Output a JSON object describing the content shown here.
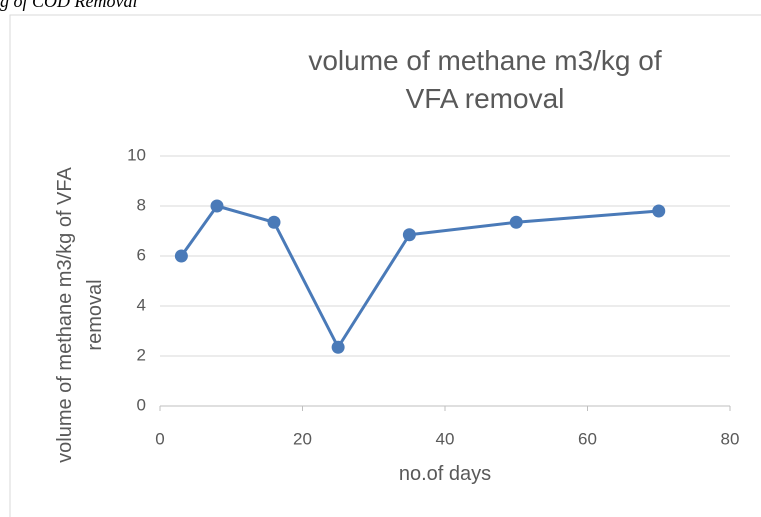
{
  "caption": "g of COD Removal",
  "chart_data": {
    "type": "line",
    "title": "volume of methane m3/kg of VFA removal",
    "x_label": "no.of days",
    "y_label": "volume of methane m3/kg of VFA removal",
    "x": [
      3,
      8,
      16,
      25,
      35,
      50,
      70
    ],
    "series": [
      {
        "name": "volume of methane m3/kg of VFA removal",
        "color": "#4a7ab8",
        "values": [
          6,
          8,
          7.35,
          2.35,
          6.85,
          7.35,
          7.8
        ]
      }
    ],
    "xlim": [
      0,
      80
    ],
    "xticks": [
      0,
      20,
      40,
      60,
      80
    ],
    "ylim": [
      0,
      10
    ],
    "yticks": [
      0,
      2,
      4,
      6,
      8,
      10
    ],
    "grid": true
  }
}
